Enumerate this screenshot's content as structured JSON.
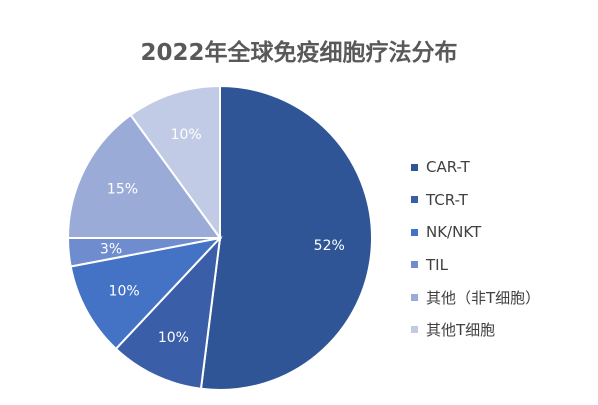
{
  "chart_data": {
    "type": "pie",
    "title": "2022年全球免疫细胞疗法分布",
    "categories": [
      "CAR-T",
      "TCR-T",
      "NK/NKT",
      "TIL",
      "其他（非T细胞）",
      "其他T细胞"
    ],
    "values": [
      52,
      10,
      10,
      3,
      15,
      10
    ],
    "value_labels": [
      "52%",
      "10%",
      "10%",
      "3%",
      "15%",
      "10%"
    ],
    "colors": [
      "#2f5597",
      "#3a5ea8",
      "#4472c4",
      "#6f8ccf",
      "#9babd8",
      "#c2cbe6"
    ],
    "legend_position": "right"
  }
}
